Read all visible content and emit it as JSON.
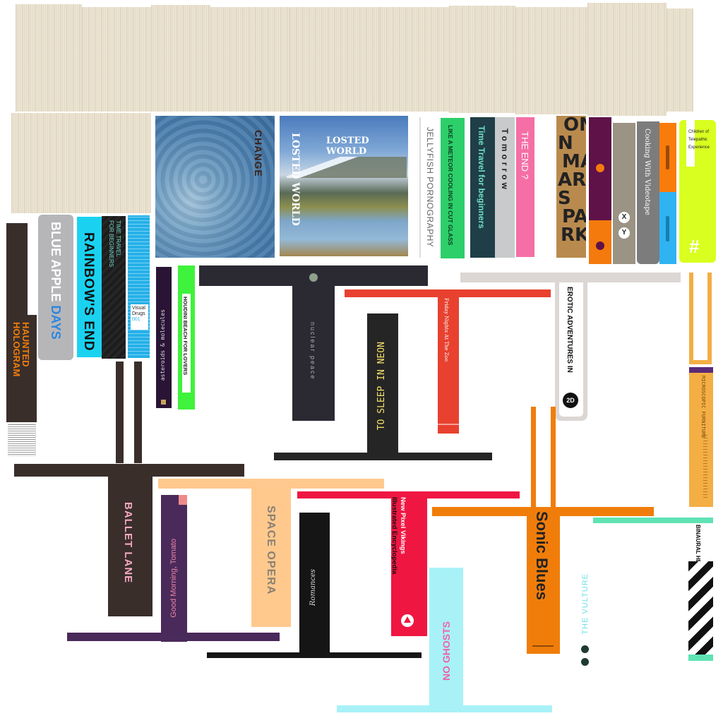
{
  "books": {
    "haunted_hologram": "HAUNTED HOLOGRAM",
    "blue_apple": "BLUE APPLE",
    "blue_apple_days": "DAYS",
    "rainbows_end": "RAINBOW'S END",
    "time_travel_small": "TIME TRAVEL FOR BEGINNERS",
    "visual_drugs": "Visual Drugs",
    "visual_drugs_num": "001",
    "change": "CHANGE",
    "losted_world_cover": "LOSTED WORLD",
    "losted_world_spine": "LOSTED WORLD",
    "jellyfish": "JELLYFISH PORNOGRAPHY",
    "meteor": "LIKE A METEOR COOLING IN CUT GLASS",
    "time_travel_big": "Time Travel for beginners",
    "tomorrow": "Tomorrow",
    "the_end": "THE END ?",
    "onmars_line1": "ON",
    "onmars_line2": "N",
    "onmars_line3": "MA",
    "onmars_line4": "ARS",
    "onmars_line5": "S",
    "onmars_line6": "PA",
    "onmars_line7": "RK",
    "cooking": "Cooking With Videotape",
    "children": "Children of Telepathic Experience",
    "hash": "#",
    "xy_x": "X",
    "xy_y": "Y",
    "asteroids": "asteroids & molecules",
    "houdini": "HOUDINI BEACH FOR LOVERS",
    "nuclear": "nuclear peace",
    "sleep_neon": "TO SLEEP IN NEON",
    "friday": "Friday Nights At The Zoo",
    "erotic": "EROTIC ADVENTURES IN",
    "erotic_badge": "2D",
    "microscopic": "MICROSCOPIC FURNITURE",
    "ballet": "BALLET LANE",
    "good_morning": "Good Morning, Tomato",
    "space_opera": "SPACE OPERA",
    "romances": "Romances",
    "pixel_vikings_1": "New Pixel Vikings",
    "pixel_vikings_2": "Illustrated Encyclopedia",
    "no_ghosts": "NO GHOSTS",
    "sonic": "Sonic Blues",
    "vulture": "THE VULTURE",
    "binaural": "BINAURAL HEADS"
  },
  "colors": {
    "wood": "#ece4d2",
    "dark_brown": "#3a2e2b",
    "navy_dark": "#2b2a33",
    "red": "#e8412f",
    "orange": "#f07d0a",
    "tan": "#f3ae44",
    "cyan_light": "#a8f2f7",
    "purple": "#4a2a5a",
    "peach": "#ffc98e",
    "crimson": "#ef1742",
    "mint": "#5fe3b4"
  }
}
